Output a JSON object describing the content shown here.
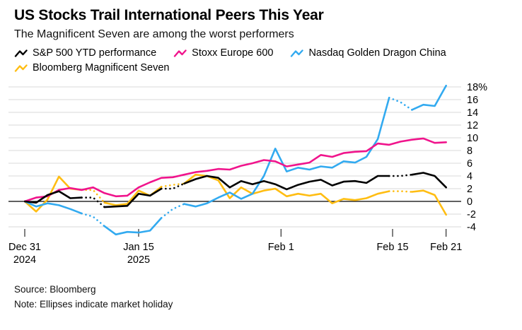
{
  "header": {
    "title": "US Stocks Trail International Peers This Year",
    "subtitle": "The Magnificent Seven are among the worst performers"
  },
  "footer": {
    "source": "Source: Bloomberg",
    "note": "Note: Ellipses indicate market holiday"
  },
  "chart_data": {
    "type": "line",
    "title": "US Stocks Trail International Peers This Year",
    "subtitle": "The Magnificent Seven are among the worst performers",
    "legend_position": "top",
    "grid": "horizontal",
    "y_axis_side": "right",
    "ylim": [
      -5.5,
      19
    ],
    "y_ticks": [
      {
        "v": 18,
        "label": "18%"
      },
      {
        "v": 16,
        "label": "16"
      },
      {
        "v": 14,
        "label": "14"
      },
      {
        "v": 12,
        "label": "12"
      },
      {
        "v": 10,
        "label": "10"
      },
      {
        "v": 8,
        "label": "8"
      },
      {
        "v": 6,
        "label": "6"
      },
      {
        "v": 4,
        "label": "4"
      },
      {
        "v": 2,
        "label": "2"
      },
      {
        "v": 0,
        "label": "0"
      },
      {
        "v": -2,
        "label": "-2"
      },
      {
        "v": -4,
        "label": "-4"
      }
    ],
    "x_dates": [
      "Dec 31",
      "Jan 2",
      "Jan 3",
      "Jan 6",
      "Jan 7",
      "Jan 8",
      "Jan 9",
      "Jan 10",
      "Jan 13",
      "Jan 14",
      "Jan 15",
      "Jan 16",
      "Jan 17",
      "Jan 20",
      "Jan 21",
      "Jan 22",
      "Jan 23",
      "Jan 24",
      "Jan 27",
      "Jan 28",
      "Jan 29",
      "Jan 30",
      "Jan 31",
      "Feb 3",
      "Feb 4",
      "Feb 5",
      "Feb 6",
      "Feb 7",
      "Feb 10",
      "Feb 11",
      "Feb 12",
      "Feb 13",
      "Feb 14",
      "Feb 17",
      "Feb 18",
      "Feb 19",
      "Feb 20",
      "Feb 21"
    ],
    "holiday_dates": [
      "Jan 9",
      "Jan 20",
      "Feb 17"
    ],
    "holiday_indices": [
      6,
      13,
      33
    ],
    "x_ticks": [
      {
        "pos": 0,
        "line1": "Dec 31",
        "line2": "2024"
      },
      {
        "pos": 10,
        "line1": "Jan 15",
        "line2": "2025"
      },
      {
        "pos": 22.5,
        "line1": "Feb 1",
        "line2": ""
      },
      {
        "pos": 32.3,
        "line1": "Feb 15",
        "line2": ""
      },
      {
        "pos": 37,
        "line1": "Feb 21",
        "line2": ""
      }
    ],
    "series": [
      {
        "name": "S&P 500 YTD performance",
        "color": "#000000",
        "dashed_on_holidays": true,
        "values": [
          0,
          -0.2,
          1.0,
          1.6,
          0.5,
          0.6,
          0.6,
          -0.9,
          -0.8,
          -0.7,
          1.2,
          0.9,
          2.0,
          2.0,
          2.8,
          3.5,
          4.0,
          3.7,
          2.2,
          3.2,
          2.7,
          3.2,
          2.7,
          1.9,
          2.6,
          3.1,
          3.4,
          2.5,
          3.1,
          3.2,
          2.9,
          4.0,
          4.0,
          4.0,
          4.2,
          4.5,
          4.0,
          2.2
        ]
      },
      {
        "name": "Stoxx Europe 600",
        "color": "#f0148c",
        "dashed_on_holidays": false,
        "values": [
          0,
          0.6,
          0.8,
          1.8,
          2.1,
          1.8,
          2.2,
          1.3,
          0.8,
          0.9,
          2.2,
          3.0,
          3.7,
          3.8,
          4.2,
          4.6,
          4.8,
          5.1,
          5.0,
          5.6,
          6.0,
          6.5,
          6.3,
          5.5,
          5.8,
          6.1,
          7.3,
          7.0,
          7.6,
          7.8,
          7.9,
          9.1,
          8.9,
          9.4,
          9.7,
          9.9,
          9.2,
          9.3
        ]
      },
      {
        "name": "Nasdaq Golden Dragon China",
        "color": "#32aaf0",
        "dashed_on_holidays": true,
        "values": [
          0,
          -0.8,
          -0.3,
          -0.6,
          -1.2,
          -1.9,
          -2.4,
          -3.9,
          -5.2,
          -4.8,
          -4.9,
          -4.6,
          -2.6,
          -1.2,
          -0.4,
          -0.8,
          -0.3,
          0.6,
          1.4,
          0.4,
          1.2,
          4.0,
          8.3,
          4.7,
          5.3,
          5.0,
          5.5,
          5.3,
          6.3,
          6.1,
          7.0,
          9.8,
          16.3,
          15.6,
          14.4,
          15.2,
          15.0,
          18.2
        ]
      },
      {
        "name": "Bloomberg Magnificent Seven",
        "color": "#ffbd12",
        "dashed_on_holidays": true,
        "values": [
          0,
          -1.6,
          0.3,
          3.9,
          2.0,
          1.8,
          1.8,
          -0.2,
          -0.6,
          -0.4,
          1.7,
          0.9,
          2.3,
          2.6,
          2.8,
          4.2,
          4.0,
          3.3,
          0.5,
          2.2,
          1.2,
          1.7,
          2.0,
          0.8,
          1.2,
          0.9,
          1.2,
          -0.3,
          0.4,
          0.2,
          0.5,
          1.2,
          1.6,
          1.6,
          1.5,
          1.7,
          1.0,
          -2.1
        ]
      }
    ],
    "source": "Bloomberg",
    "note": "Ellipses indicate market holiday"
  }
}
